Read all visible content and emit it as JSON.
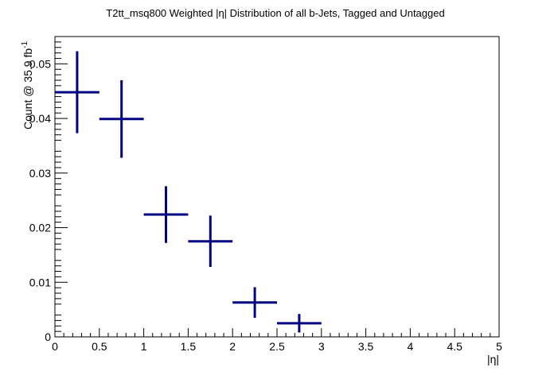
{
  "chart_data": {
    "type": "scatter",
    "title": "T2tt_msq800 Weighted |η| Distribution of all b-Jets, Tagged and Untagged",
    "xlabel": "|η|",
    "ylabel": "Count @ 35.9 fb",
    "ylabel_sup": "-1",
    "xlim": [
      0,
      5
    ],
    "ylim": [
      0,
      0.055
    ],
    "x_ticks": [
      "0",
      "0.5",
      "1",
      "1.5",
      "2",
      "2.5",
      "3",
      "3.5",
      "4",
      "4.5",
      "5"
    ],
    "y_ticks": [
      "0",
      "0.01",
      "0.02",
      "0.03",
      "0.04",
      "0.05"
    ],
    "grid": false,
    "legend": "none",
    "color": "#000080",
    "series": [
      {
        "points": [
          {
            "x": 0.25,
            "xerr": 0.25,
            "y": 0.0448,
            "yerr": 0.0075
          },
          {
            "x": 0.75,
            "xerr": 0.25,
            "y": 0.0399,
            "yerr": 0.0071
          },
          {
            "x": 1.25,
            "xerr": 0.25,
            "y": 0.0224,
            "yerr": 0.0052
          },
          {
            "x": 1.75,
            "xerr": 0.25,
            "y": 0.0175,
            "yerr": 0.0047
          },
          {
            "x": 2.25,
            "xerr": 0.25,
            "y": 0.0063,
            "yerr": 0.0028
          },
          {
            "x": 2.75,
            "xerr": 0.25,
            "y": 0.0025,
            "yerr": 0.0017
          }
        ]
      }
    ]
  }
}
